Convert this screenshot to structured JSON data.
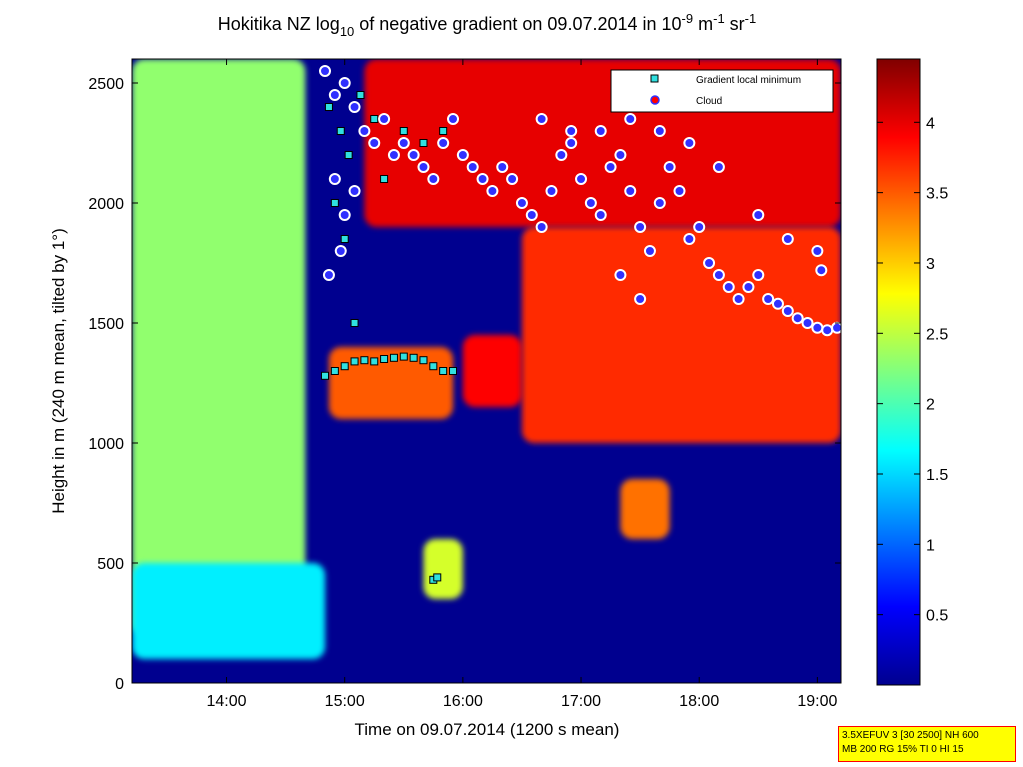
{
  "title": {
    "prefix": "Hokitika NZ log",
    "sub": "10",
    "middle": " of negative gradient on 09.07.2014 in 10",
    "exp1": "-9",
    "m_unit": " m",
    "exp2": "-1",
    "sr_unit": " sr",
    "exp3": "-1"
  },
  "xlabel": "Time on 09.07.2014 (1200 s mean)",
  "ylabel": "Height in m (240 m mean, tilted by 1°)",
  "legend": {
    "gradient_label": "Gradient local minimum",
    "cloud_label": "Cloud"
  },
  "param_box": {
    "line1": "3.5XEFUV 3 [30 2500] NH 600",
    "line2": "MB 200 RG 15% TI 0 HI 15"
  },
  "colors": {
    "gradient_marker": "#30e0e0",
    "cloud_marker": "#ff0000",
    "cloud_edge": "#ffffff",
    "background_low": "#00008f"
  },
  "chart_data": {
    "type": "heatmap",
    "colormap": "jet",
    "xlim": [
      "13:12",
      "19:12"
    ],
    "ylim": [
      0,
      2600
    ],
    "clim": [
      0,
      4.45
    ],
    "grid": false,
    "legend_position": "top-right",
    "x_ticks": [
      "14:00",
      "15:00",
      "16:00",
      "17:00",
      "18:00",
      "19:00"
    ],
    "y_ticks": [
      0,
      500,
      1000,
      1500,
      2000,
      2500
    ],
    "colorbar_ticks": [
      0.5,
      1,
      1.5,
      2,
      2.5,
      3,
      3.5,
      4
    ],
    "regions": [
      {
        "t0": "13:12",
        "t1": "14:40",
        "h0": 200,
        "h1": 2600,
        "value": 2.3
      },
      {
        "t0": "13:12",
        "t1": "14:50",
        "h0": 100,
        "h1": 500,
        "value": 1.6
      },
      {
        "t0": "14:52",
        "t1": "15:55",
        "h0": 1100,
        "h1": 1400,
        "value": 3.5
      },
      {
        "t0": "16:00",
        "t1": "16:30",
        "h0": 1150,
        "h1": 1450,
        "value": 3.9
      },
      {
        "t0": "15:10",
        "t1": "19:12",
        "h0": 1900,
        "h1": 2600,
        "value": 4.0
      },
      {
        "t0": "16:30",
        "t1": "19:12",
        "h0": 1000,
        "h1": 1900,
        "value": 3.7
      },
      {
        "t0": "17:20",
        "t1": "17:45",
        "h0": 600,
        "h1": 850,
        "value": 3.4
      },
      {
        "t0": "15:40",
        "t1": "16:00",
        "h0": 350,
        "h1": 600,
        "value": 2.6
      }
    ],
    "gradient_local_minimum": [
      {
        "t": "14:50",
        "h": 1280
      },
      {
        "t": "14:55",
        "h": 1300
      },
      {
        "t": "15:00",
        "h": 1320
      },
      {
        "t": "15:05",
        "h": 1340
      },
      {
        "t": "15:10",
        "h": 1345
      },
      {
        "t": "15:15",
        "h": 1340
      },
      {
        "t": "15:20",
        "h": 1350
      },
      {
        "t": "15:25",
        "h": 1355
      },
      {
        "t": "15:30",
        "h": 1360
      },
      {
        "t": "15:35",
        "h": 1355
      },
      {
        "t": "15:40",
        "h": 1345
      },
      {
        "t": "15:45",
        "h": 1320
      },
      {
        "t": "15:50",
        "h": 1300
      },
      {
        "t": "15:55",
        "h": 1300
      },
      {
        "t": "15:45",
        "h": 430
      },
      {
        "t": "15:47",
        "h": 440
      },
      {
        "t": "14:52",
        "h": 2400
      },
      {
        "t": "14:58",
        "h": 2300
      },
      {
        "t": "15:02",
        "h": 2200
      },
      {
        "t": "15:08",
        "h": 2450
      },
      {
        "t": "15:15",
        "h": 2350
      },
      {
        "t": "15:20",
        "h": 2100
      },
      {
        "t": "15:30",
        "h": 2300
      },
      {
        "t": "15:40",
        "h": 2250
      },
      {
        "t": "15:50",
        "h": 2300
      },
      {
        "t": "14:55",
        "h": 2000
      },
      {
        "t": "15:00",
        "h": 1850
      },
      {
        "t": "15:05",
        "h": 1500
      }
    ],
    "cloud": [
      {
        "t": "14:50",
        "h": 2550
      },
      {
        "t": "14:55",
        "h": 2450
      },
      {
        "t": "15:00",
        "h": 2500
      },
      {
        "t": "15:05",
        "h": 2400
      },
      {
        "t": "15:10",
        "h": 2300
      },
      {
        "t": "15:15",
        "h": 2250
      },
      {
        "t": "15:20",
        "h": 2350
      },
      {
        "t": "15:25",
        "h": 2200
      },
      {
        "t": "15:30",
        "h": 2250
      },
      {
        "t": "15:35",
        "h": 2200
      },
      {
        "t": "15:40",
        "h": 2150
      },
      {
        "t": "15:45",
        "h": 2100
      },
      {
        "t": "15:50",
        "h": 2250
      },
      {
        "t": "15:55",
        "h": 2350
      },
      {
        "t": "16:00",
        "h": 2200
      },
      {
        "t": "16:05",
        "h": 2150
      },
      {
        "t": "16:10",
        "h": 2100
      },
      {
        "t": "16:15",
        "h": 2050
      },
      {
        "t": "16:20",
        "h": 2150
      },
      {
        "t": "16:25",
        "h": 2100
      },
      {
        "t": "16:30",
        "h": 2000
      },
      {
        "t": "16:35",
        "h": 1950
      },
      {
        "t": "16:40",
        "h": 1900
      },
      {
        "t": "16:45",
        "h": 2050
      },
      {
        "t": "16:50",
        "h": 2200
      },
      {
        "t": "16:55",
        "h": 2300
      },
      {
        "t": "17:00",
        "h": 2100
      },
      {
        "t": "17:05",
        "h": 2000
      },
      {
        "t": "17:10",
        "h": 1950
      },
      {
        "t": "17:15",
        "h": 2150
      },
      {
        "t": "17:20",
        "h": 2200
      },
      {
        "t": "17:25",
        "h": 2050
      },
      {
        "t": "17:30",
        "h": 1900
      },
      {
        "t": "17:35",
        "h": 1800
      },
      {
        "t": "17:40",
        "h": 2000
      },
      {
        "t": "17:45",
        "h": 2150
      },
      {
        "t": "17:50",
        "h": 2050
      },
      {
        "t": "17:55",
        "h": 1850
      },
      {
        "t": "18:00",
        "h": 1900
      },
      {
        "t": "18:05",
        "h": 1750
      },
      {
        "t": "18:10",
        "h": 1700
      },
      {
        "t": "18:15",
        "h": 1650
      },
      {
        "t": "18:20",
        "h": 1600
      },
      {
        "t": "18:25",
        "h": 1650
      },
      {
        "t": "18:30",
        "h": 1700
      },
      {
        "t": "18:35",
        "h": 1600
      },
      {
        "t": "18:40",
        "h": 1580
      },
      {
        "t": "18:45",
        "h": 1550
      },
      {
        "t": "18:50",
        "h": 1520
      },
      {
        "t": "18:55",
        "h": 1500
      },
      {
        "t": "19:00",
        "h": 1480
      },
      {
        "t": "19:05",
        "h": 1470
      },
      {
        "t": "19:10",
        "h": 1480
      },
      {
        "t": "16:40",
        "h": 2350
      },
      {
        "t": "16:55",
        "h": 2250
      },
      {
        "t": "17:10",
        "h": 2300
      },
      {
        "t": "17:25",
        "h": 2350
      },
      {
        "t": "17:40",
        "h": 2300
      },
      {
        "t": "17:55",
        "h": 2250
      },
      {
        "t": "18:10",
        "h": 2150
      },
      {
        "t": "17:20",
        "h": 1700
      },
      {
        "t": "17:30",
        "h": 1600
      },
      {
        "t": "18:30",
        "h": 1950
      },
      {
        "t": "18:45",
        "h": 1850
      },
      {
        "t": "19:00",
        "h": 1800
      },
      {
        "t": "19:02",
        "h": 1720
      },
      {
        "t": "14:55",
        "h": 2100
      },
      {
        "t": "15:00",
        "h": 1950
      },
      {
        "t": "14:58",
        "h": 1800
      },
      {
        "t": "15:05",
        "h": 2050
      },
      {
        "t": "14:52",
        "h": 1700
      }
    ]
  }
}
